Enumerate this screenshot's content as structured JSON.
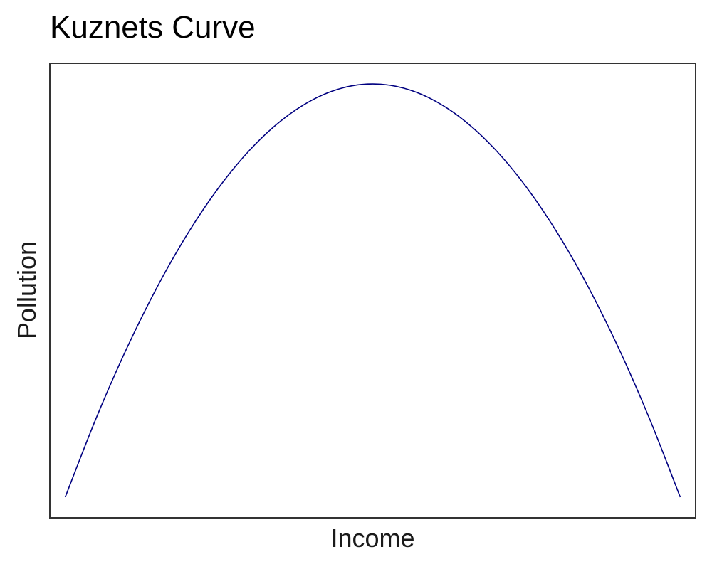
{
  "chart_data": {
    "type": "line",
    "title": "Kuznets Curve",
    "xlabel": "Income",
    "ylabel": "Pollution",
    "xlim": [
      -1.05,
      1.05
    ],
    "ylim": [
      -0.05,
      1.05
    ],
    "grid": false,
    "show_ticks": false,
    "line_color": "#000080",
    "panel_border_color": "#333333",
    "series": [
      {
        "x": [
          -1.0,
          -0.9,
          -0.8,
          -0.7,
          -0.6,
          -0.5,
          -0.4,
          -0.3,
          -0.2,
          -0.1,
          0.0,
          0.1,
          0.2,
          0.3,
          0.4,
          0.5,
          0.6,
          0.7,
          0.8,
          0.9,
          1.0
        ],
        "y": [
          0.0,
          0.19,
          0.36,
          0.51,
          0.64,
          0.75,
          0.84,
          0.91,
          0.96,
          0.99,
          1.0,
          0.99,
          0.96,
          0.91,
          0.84,
          0.75,
          0.64,
          0.51,
          0.36,
          0.19,
          0.0
        ]
      }
    ]
  }
}
